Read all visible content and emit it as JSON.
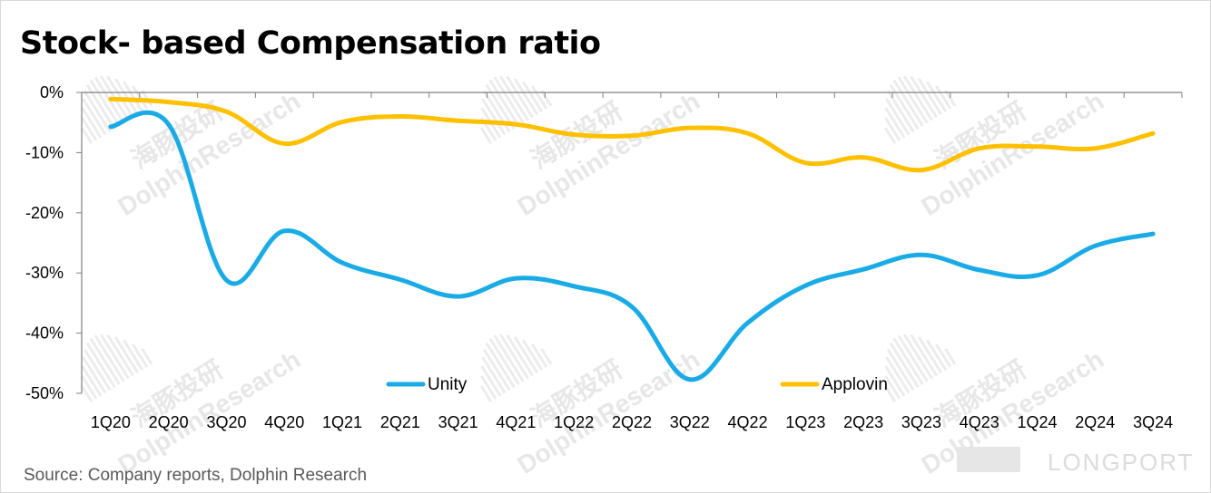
{
  "title": "Stock- based Compensation ratio",
  "source": "Source: Company reports, Dolphin Research",
  "watermark": {
    "cn": "海豚投研",
    "en": "DolphinResearch"
  },
  "brand": "LONGPORT",
  "chart_data": {
    "type": "line",
    "categories": [
      "1Q20",
      "2Q20",
      "3Q20",
      "4Q20",
      "1Q21",
      "2Q21",
      "3Q21",
      "4Q21",
      "1Q22",
      "2Q22",
      "3Q22",
      "4Q22",
      "1Q23",
      "2Q23",
      "3Q23",
      "4Q23",
      "1Q24",
      "2Q24",
      "3Q24"
    ],
    "y_ticks": [
      "0%",
      "-10%",
      "-20%",
      "-30%",
      "-40%",
      "-50%"
    ],
    "ylim": [
      -50,
      0
    ],
    "legend_position": "bottom",
    "series": [
      {
        "name": "Unity",
        "color": "#1AABE6",
        "values": [
          -5.7,
          -5.3,
          -31.2,
          -23.0,
          -28.3,
          -31.1,
          -33.9,
          -30.9,
          -32.2,
          -35.6,
          -47.7,
          -38.3,
          -32.1,
          -29.4,
          -27.0,
          -29.5,
          -30.4,
          -25.5,
          -23.5
        ]
      },
      {
        "name": "Applovin",
        "color": "#FFC000",
        "values": [
          -1.1,
          -1.6,
          -3.2,
          -8.5,
          -4.9,
          -4.0,
          -4.7,
          -5.3,
          -7.0,
          -7.2,
          -5.9,
          -6.8,
          -11.7,
          -10.8,
          -12.9,
          -9.3,
          -9.0,
          -9.3,
          -6.8
        ]
      }
    ]
  }
}
